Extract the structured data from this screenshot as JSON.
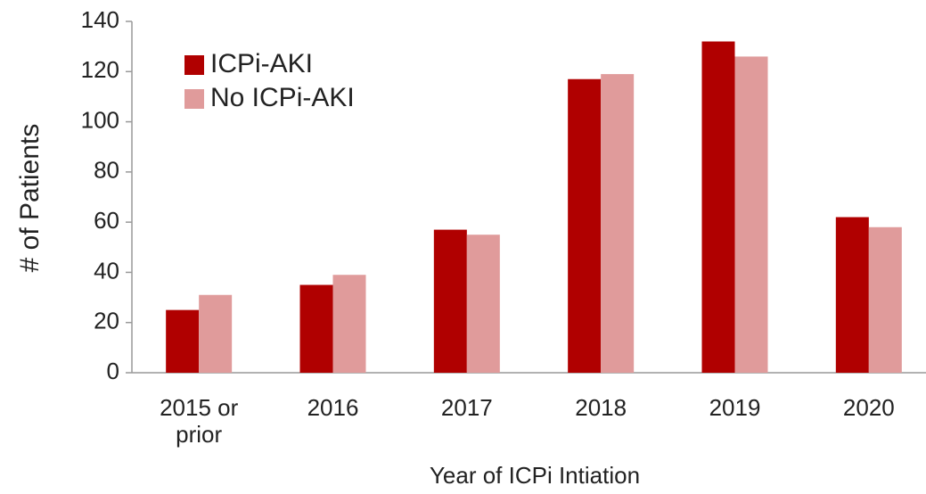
{
  "chart_data": {
    "type": "bar",
    "x_label": "Year of ICPi Intiation",
    "y_label": "# of Patients",
    "categories": [
      "2015 or prior",
      "2016",
      "2017",
      "2018",
      "2019",
      "2020"
    ],
    "series": [
      {
        "name": "ICPi-AKI",
        "color": "#b00000",
        "values": [
          25,
          35,
          57,
          117,
          132,
          62
        ]
      },
      {
        "name": "No ICPi-AKI",
        "color": "#e09b9b",
        "values": [
          31,
          39,
          55,
          119,
          126,
          58
        ]
      }
    ],
    "ylim": [
      0,
      140
    ],
    "yticks": [
      0,
      20,
      40,
      60,
      80,
      100,
      120,
      140
    ],
    "grid": false,
    "legend": "top-left"
  }
}
